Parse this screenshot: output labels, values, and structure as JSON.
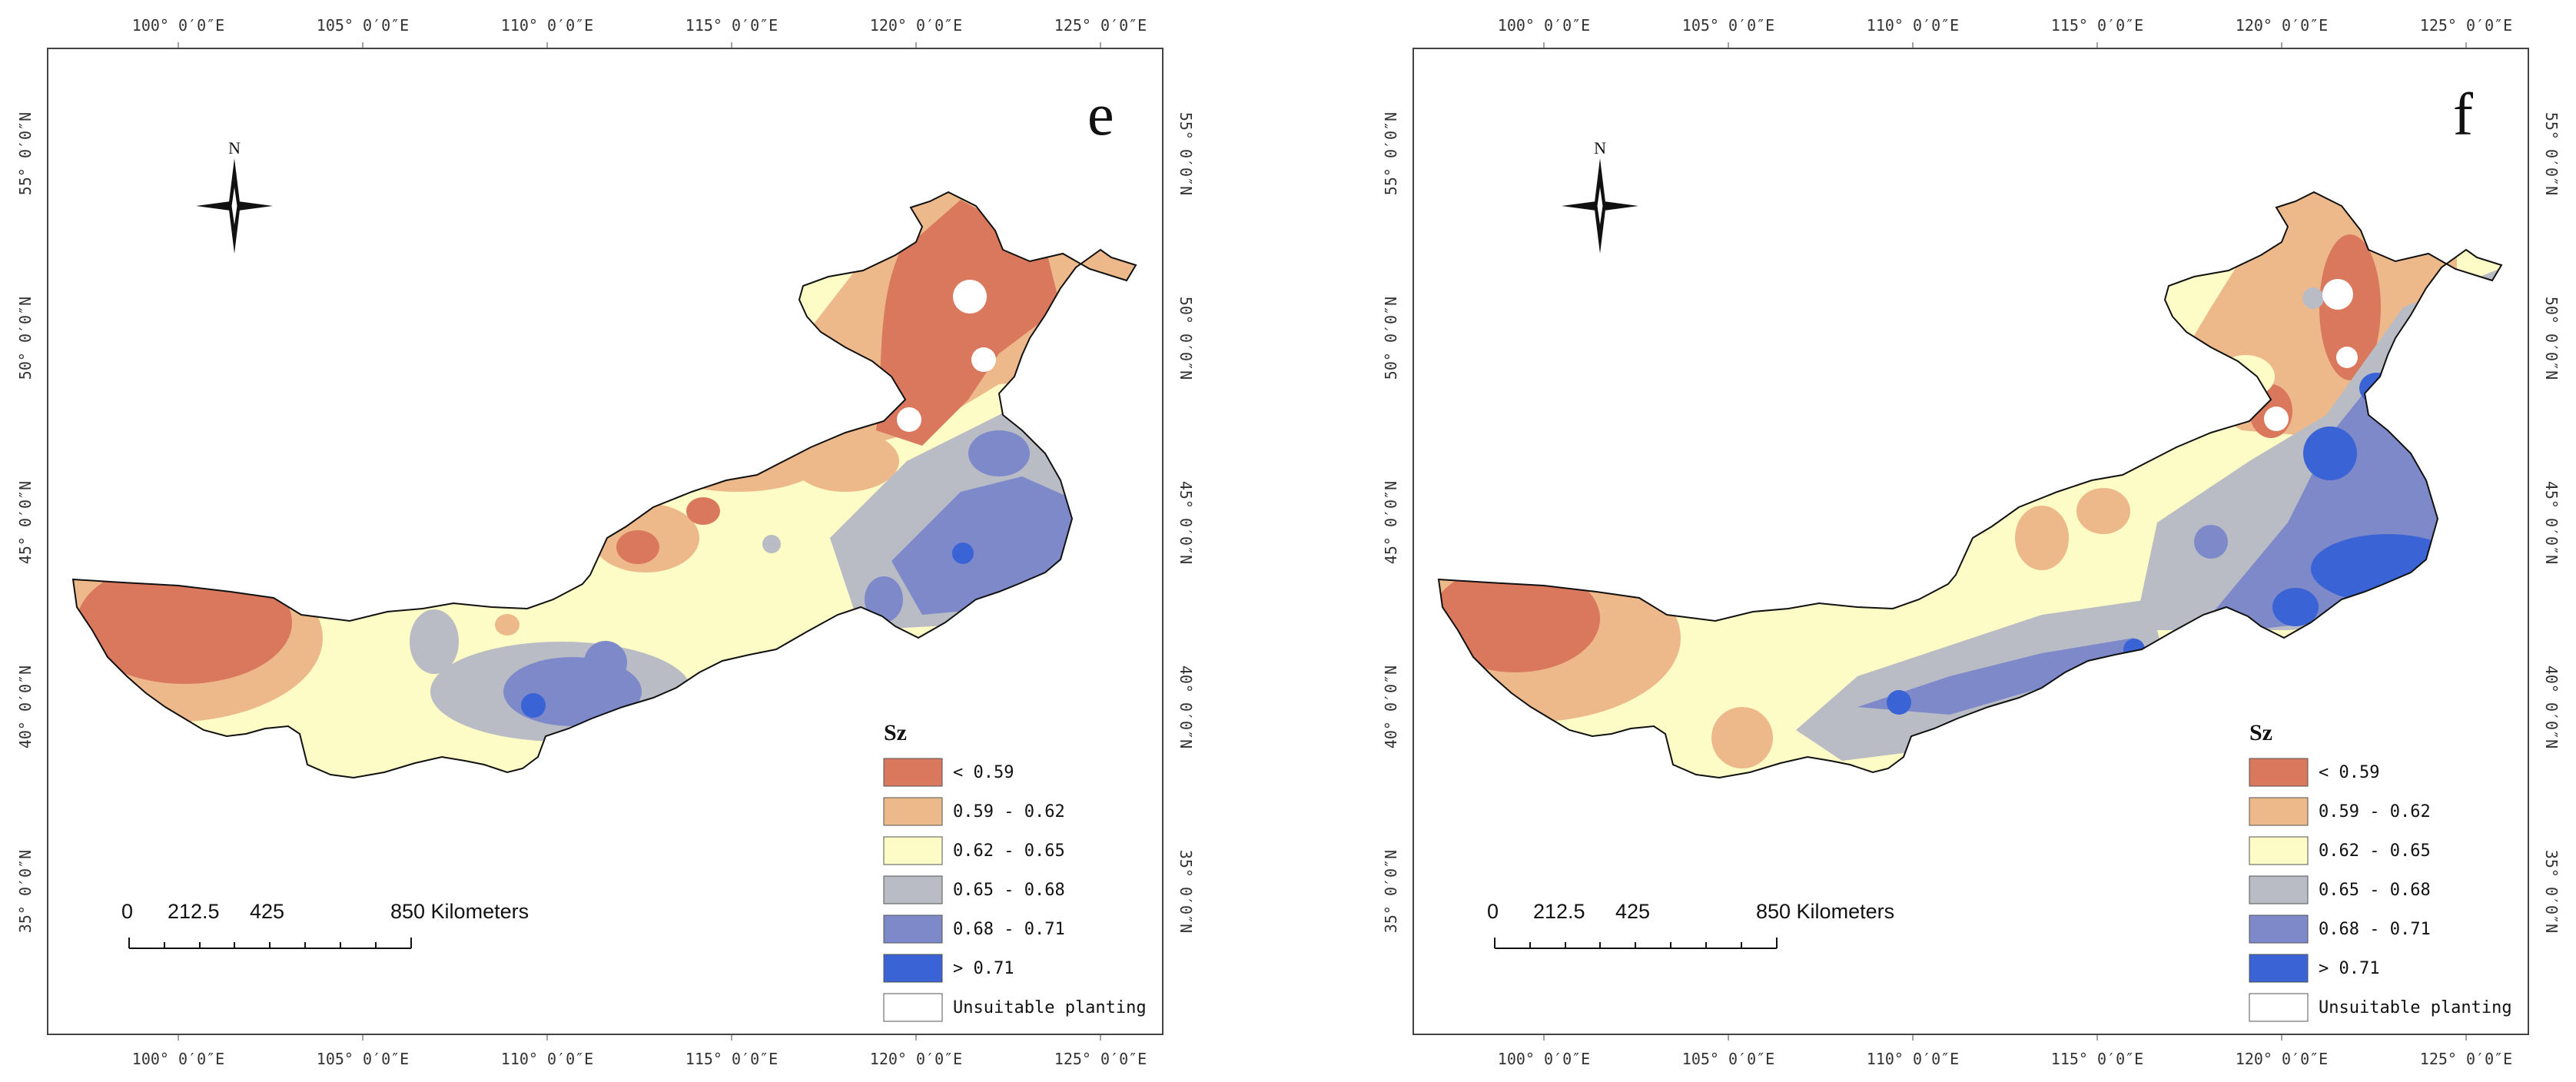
{
  "lon_ticks": [
    "100° 0′0″E",
    "105° 0′0″E",
    "110° 0′0″E",
    "115° 0′0″E",
    "120° 0′0″E",
    "125° 0′0″E"
  ],
  "lat_ticks": [
    "55° 0′0″N",
    "50° 0′0″N",
    "45° 0′0″N",
    "40° 0′0″N",
    "35° 0′0″N"
  ],
  "north_label": "N",
  "scale_labels": [
    "0",
    "212.5",
    "425",
    "850 Kilometers"
  ],
  "legend": {
    "title": "Sz",
    "items": [
      {
        "label": "< 0.59",
        "color": "#d9785c"
      },
      {
        "label": "0.59 - 0.62",
        "color": "#eeb98a"
      },
      {
        "label": "0.62 - 0.65",
        "color": "#fdfbc6"
      },
      {
        "label": "0.65 - 0.68",
        "color": "#b9bcc4"
      },
      {
        "label": "0.68 - 0.71",
        "color": "#7d89c9"
      },
      {
        "label": "> 0.71",
        "color": "#3a63d6"
      },
      {
        "label": "Unsuitable planting",
        "color": "#ffffff"
      }
    ]
  },
  "panels": [
    {
      "id": "e",
      "letter": "e"
    },
    {
      "id": "f",
      "letter": "f"
    }
  ]
}
